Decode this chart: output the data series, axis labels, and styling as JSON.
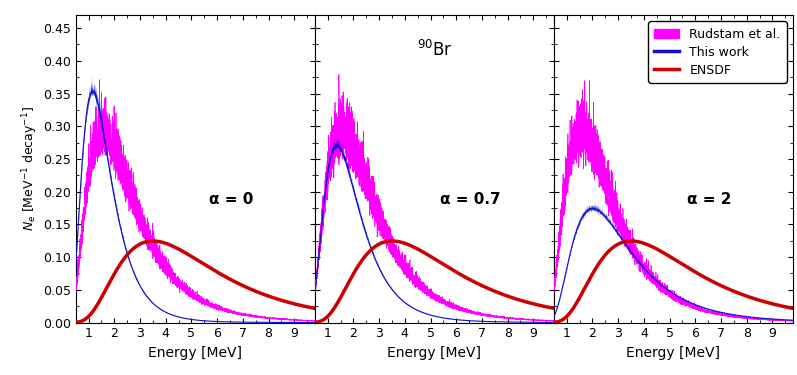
{
  "title": "$^{90}$Br",
  "ylabel": "$N_e$ [MeV$^{-1}$ decay$^{-1}$]",
  "xlabel": "Energy [MeV]",
  "ylim": [
    0,
    0.47
  ],
  "xlim": [
    0.5,
    9.8
  ],
  "yticks": [
    0,
    0.05,
    0.1,
    0.15,
    0.2,
    0.25,
    0.3,
    0.35,
    0.4,
    0.45
  ],
  "xticks": [
    1,
    2,
    3,
    4,
    5,
    6,
    7,
    8,
    9
  ],
  "alpha_labels": [
    "α = 0",
    "α = 0.7",
    "α = 2"
  ],
  "color_rudstam": "#FF00FF",
  "color_thiswork": "#1111CC",
  "color_ensdf": "#CC0000",
  "legend_labels": [
    "Rudstam et al.",
    "This work",
    "ENSDF"
  ],
  "panels": [
    {
      "alpha_val": 0,
      "blue_peak": 0.4,
      "blue_mode": 1.15,
      "blue_sigma": 0.5,
      "rudstam_peak": 0.34,
      "rudstam_mode": 1.55,
      "rudstam_sigma": 0.6,
      "ensdf_peak": 0.145,
      "ensdf_mode": 3.5,
      "ensdf_sigma": 0.55
    },
    {
      "alpha_val": 0.7,
      "blue_peak": 0.31,
      "blue_mode": 1.35,
      "blue_sigma": 0.52,
      "rudstam_peak": 0.34,
      "rudstam_mode": 1.55,
      "rudstam_sigma": 0.6,
      "ensdf_peak": 0.145,
      "ensdf_mode": 3.5,
      "ensdf_sigma": 0.55
    },
    {
      "alpha_val": 2,
      "blue_peak": 0.205,
      "blue_mode": 2.0,
      "blue_sigma": 0.57,
      "rudstam_peak": 0.34,
      "rudstam_mode": 1.55,
      "rudstam_sigma": 0.6,
      "ensdf_peak": 0.145,
      "ensdf_mode": 3.5,
      "ensdf_sigma": 0.55
    }
  ]
}
